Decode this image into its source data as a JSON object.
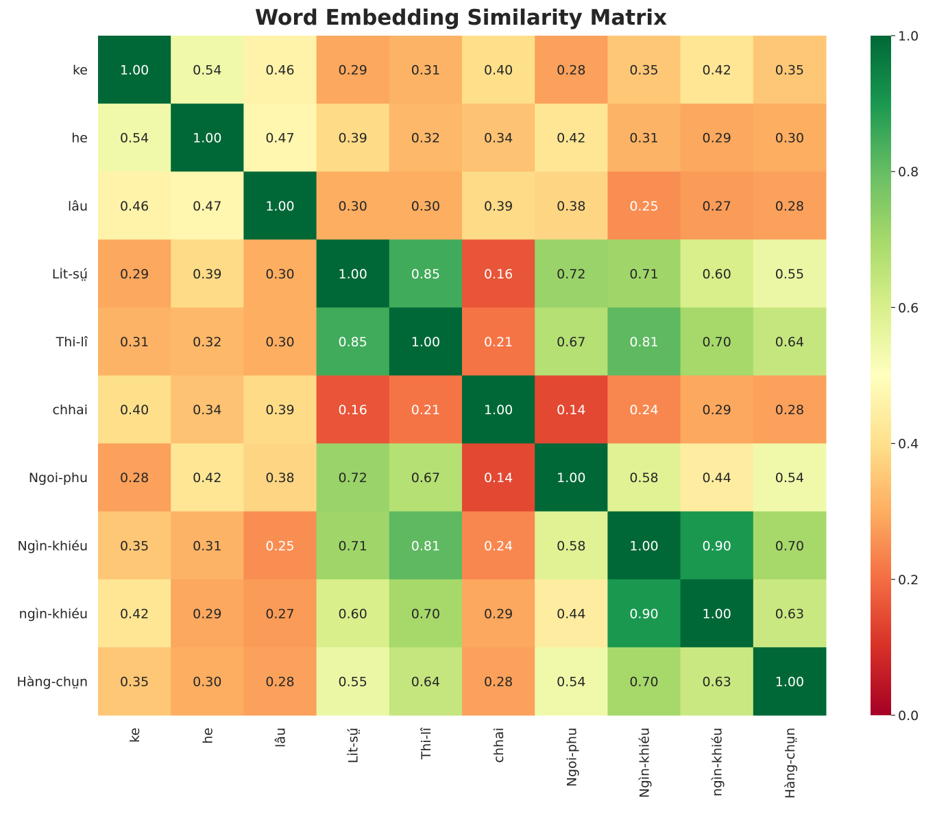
{
  "chart_data": {
    "type": "heatmap",
    "title": "Word Embedding Similarity Matrix",
    "colormap": "RdYlGn",
    "colormap_stops": [
      "#a50026",
      "#d73027",
      "#f46d43",
      "#fdae61",
      "#fee08b",
      "#ffffbf",
      "#d9ef8b",
      "#a6d96a",
      "#66bd63",
      "#1a9850",
      "#006837"
    ],
    "vmin": 0.0,
    "vmax": 1.0,
    "colorbar_ticks": [
      "0.0",
      "0.2",
      "0.4",
      "0.6",
      "0.8",
      "1.0"
    ],
    "colorbar_tick_values": [
      0,
      0.2,
      0.4,
      0.6,
      0.8,
      1.0
    ],
    "labels": [
      "ke",
      "he",
      "lâu",
      "Lı̍t-sṳ́",
      "Thi-lî",
      "chhai",
      "Ngoi-phu",
      "Ngìn-khiéu",
      "ngìn-khiéu",
      "Hàng-chṳn"
    ],
    "values": [
      [
        1.0,
        0.54,
        0.46,
        0.29,
        0.31,
        0.4,
        0.28,
        0.35,
        0.42,
        0.35
      ],
      [
        0.54,
        1.0,
        0.47,
        0.39,
        0.32,
        0.34,
        0.42,
        0.31,
        0.29,
        0.3
      ],
      [
        0.46,
        0.47,
        1.0,
        0.3,
        0.3,
        0.39,
        0.38,
        0.25,
        0.27,
        0.28
      ],
      [
        0.29,
        0.39,
        0.3,
        1.0,
        0.85,
        0.16,
        0.72,
        0.71,
        0.6,
        0.55
      ],
      [
        0.31,
        0.32,
        0.3,
        0.85,
        1.0,
        0.21,
        0.67,
        0.81,
        0.7,
        0.64
      ],
      [
        0.4,
        0.34,
        0.39,
        0.16,
        0.21,
        1.0,
        0.14,
        0.24,
        0.29,
        0.28
      ],
      [
        0.28,
        0.42,
        0.38,
        0.72,
        0.67,
        0.14,
        1.0,
        0.58,
        0.44,
        0.54
      ],
      [
        0.35,
        0.31,
        0.25,
        0.71,
        0.81,
        0.24,
        0.58,
        1.0,
        0.9,
        0.7
      ],
      [
        0.42,
        0.29,
        0.27,
        0.6,
        0.7,
        0.29,
        0.44,
        0.9,
        1.0,
        0.63
      ],
      [
        0.35,
        0.3,
        0.28,
        0.55,
        0.64,
        0.28,
        0.54,
        0.7,
        0.63,
        1.0
      ]
    ],
    "annotation_format": "0.00"
  }
}
